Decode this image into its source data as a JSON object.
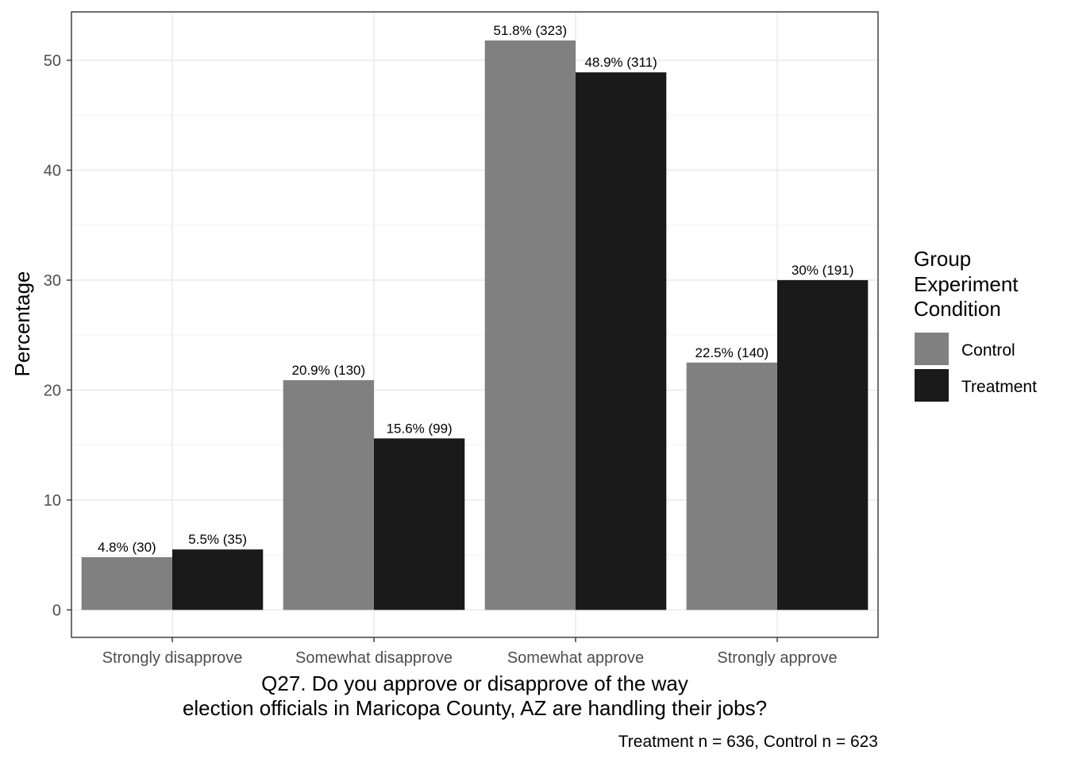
{
  "chart_data": {
    "type": "bar",
    "categories": [
      "Strongly disapprove",
      "Somewhat disapprove",
      "Somewhat approve",
      "Strongly approve"
    ],
    "series": [
      {
        "name": "Control",
        "color": "#808080",
        "values": [
          4.8,
          20.9,
          51.8,
          22.5
        ],
        "labels": [
          "4.8% (30)",
          "20.9% (130)",
          "51.8% (323)",
          "22.5% (140)"
        ]
      },
      {
        "name": "Treatment",
        "color": "#1a1a1a",
        "values": [
          5.5,
          15.6,
          48.9,
          30.0
        ],
        "labels": [
          "5.5% (35)",
          "15.6% (99)",
          "48.9% (311)",
          "30% (191)"
        ]
      }
    ],
    "xlabel_lines": [
      "Q27. Do you approve or disapprove of the way",
      "election officials in Maricopa County, AZ are handling their jobs?"
    ],
    "ylabel": "Percentage",
    "caption": "Treatment n = 636, Control n = 623",
    "legend_title_lines": [
      "Group",
      "Experiment",
      "Condition"
    ],
    "legend_position": "right",
    "ylim": [
      -2.5,
      54.4
    ],
    "yticks": [
      0,
      10,
      20,
      30,
      40,
      50
    ],
    "grid": true
  }
}
